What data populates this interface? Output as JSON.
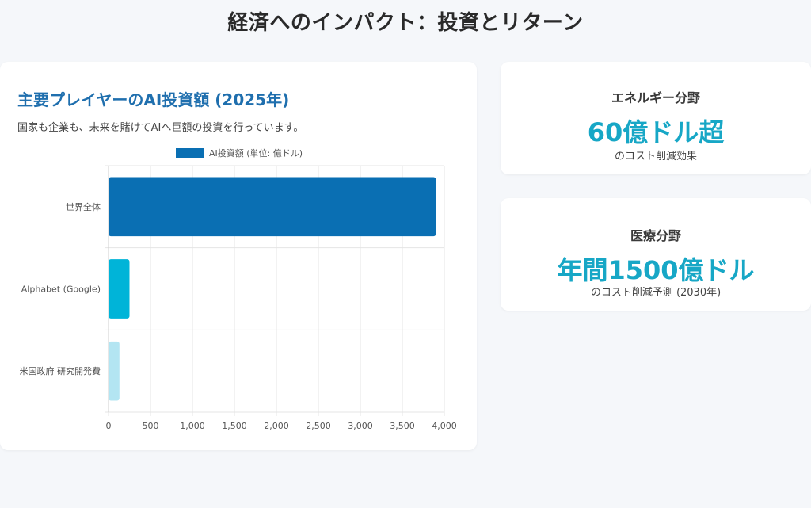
{
  "page": {
    "title": "経済へのインパクト：投資とリターン"
  },
  "chart_card": {
    "title": "主要プレイヤーのAI投資額 (2025年)",
    "description": "国家も企業も、未来を賭けてAIへ巨額の投資を行っています。"
  },
  "stats": [
    {
      "label": "エネルギー分野",
      "value": "60億ドル超",
      "note": "のコスト削減効果"
    },
    {
      "label": "医療分野",
      "value": "年間1500億ドル",
      "note": "のコスト削減予測 (2030年)"
    }
  ],
  "colors": {
    "accent": "#17a7c6",
    "title_blue": "#1f6fae",
    "bars": [
      "#0a6fb3",
      "#00b4d8",
      "#b3e5f2"
    ]
  },
  "chart_data": {
    "type": "bar",
    "orientation": "horizontal",
    "categories": [
      "世界全体",
      "Alphabet (Google)",
      "米国政府 研究開発費"
    ],
    "series": [
      {
        "name": "AI投資額 (単位: 億ドル)",
        "values": [
          3900,
          250,
          130
        ]
      }
    ],
    "xlim": [
      0,
      4000
    ],
    "x_ticks": [
      0,
      500,
      1000,
      1500,
      2000,
      2500,
      3000,
      3500,
      4000
    ],
    "x_tick_labels": [
      "0",
      "500",
      "1,000",
      "1,500",
      "2,000",
      "2,500",
      "3,000",
      "3,500",
      "4,000"
    ],
    "grid": true,
    "legend_position": "top"
  }
}
